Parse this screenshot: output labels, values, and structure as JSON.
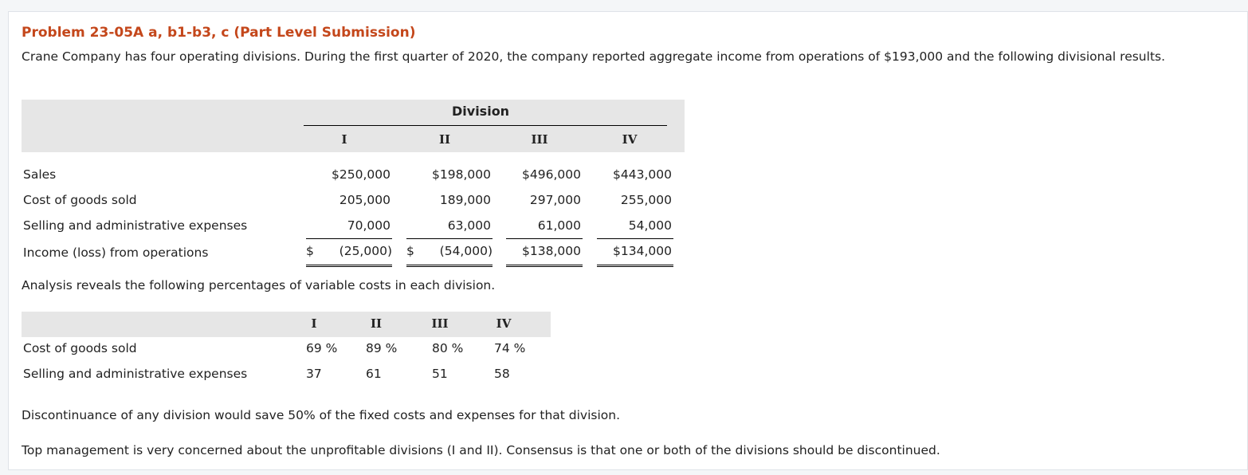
{
  "title": "Problem 23-05A a, b1-b3, c (Part Level Submission)",
  "intro": "Crane Company has four operating divisions. During the first quarter of 2020, the company reported aggregate income from operations of $193,000 and the following divisional results.",
  "table1": {
    "group_header": "Division",
    "columns": [
      "I",
      "II",
      "III",
      "IV"
    ],
    "rows": [
      {
        "label": "Sales",
        "values": [
          "$250,000",
          "$198,000",
          "$496,000",
          "$443,000"
        ]
      },
      {
        "label": "Cost of goods sold",
        "values": [
          "205,000",
          "189,000",
          "297,000",
          "255,000"
        ]
      },
      {
        "label": "Selling and administrative expenses",
        "values": [
          "70,000",
          "63,000",
          "61,000",
          "54,000"
        ]
      },
      {
        "label": "Income (loss) from operations",
        "values": [
          "$ (25,000)",
          "$ (54,000)",
          "$138,000",
          "$134,000"
        ]
      }
    ]
  },
  "analysis": "Analysis reveals the following percentages of variable costs in each division.",
  "table2": {
    "columns": [
      "I",
      "II",
      "III",
      "IV"
    ],
    "rows": [
      {
        "label": "Cost of goods sold",
        "values": [
          "69 %",
          "89 %",
          "80 %",
          "74 %"
        ]
      },
      {
        "label": "Selling and administrative expenses",
        "values": [
          "37",
          "61",
          "51",
          "58"
        ]
      }
    ]
  },
  "discontinuance": "Discontinuance of any division would save 50% of the fixed costs and expenses for that division.",
  "top_management": "Top management is very concerned about the unprofitable divisions (I and II). Consensus is that one or both of the divisions should be discontinued."
}
